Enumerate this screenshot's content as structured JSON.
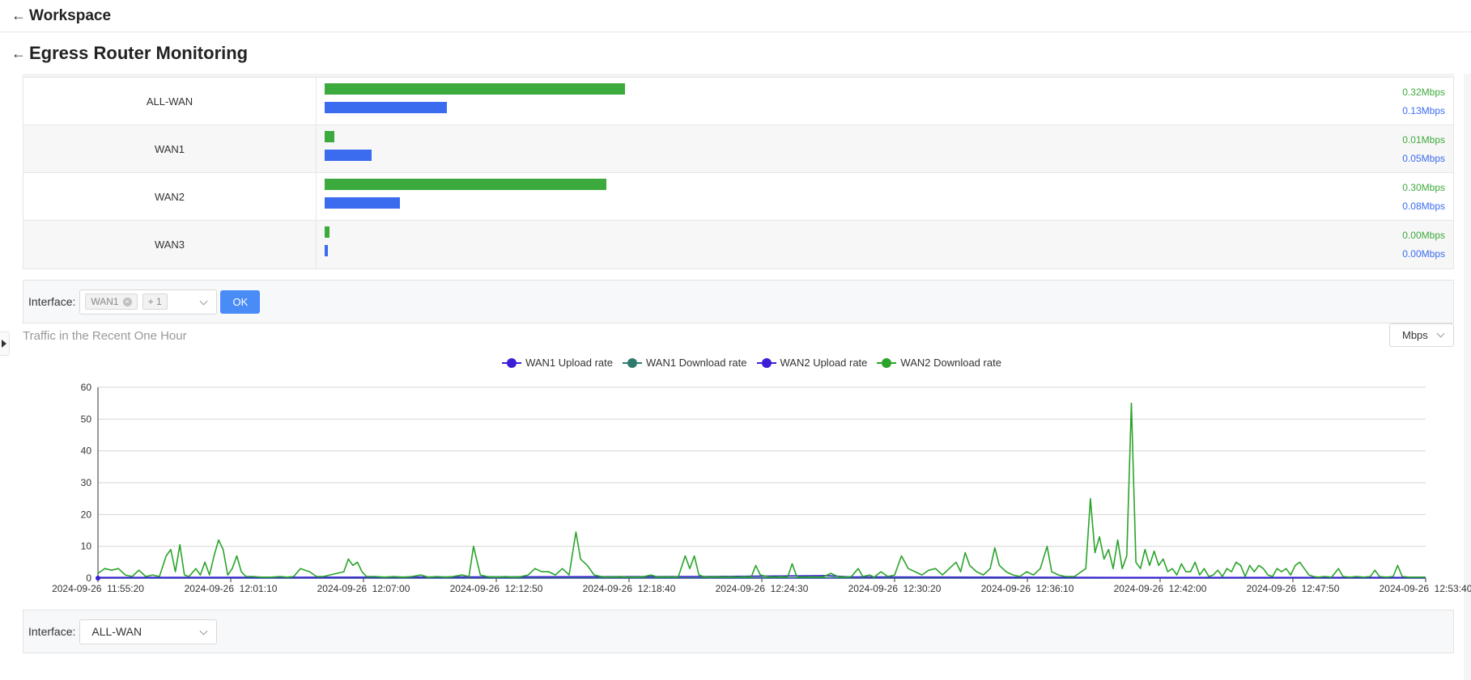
{
  "topbar": {
    "title": "Workspace"
  },
  "page": {
    "title": "Egress Router Monitoring"
  },
  "rates": {
    "rows": [
      {
        "name": "ALL-WAN",
        "up_label": "0.32Mbps",
        "down_label": "0.13Mbps",
        "up_fraction": 0.32,
        "down_fraction": 0.13
      },
      {
        "name": "WAN1",
        "up_label": "0.01Mbps",
        "down_label": "0.05Mbps",
        "up_fraction": 0.01,
        "down_fraction": 0.05
      },
      {
        "name": "WAN2",
        "up_label": "0.30Mbps",
        "down_label": "0.08Mbps",
        "up_fraction": 0.3,
        "down_fraction": 0.08
      },
      {
        "name": "WAN3",
        "up_label": "0.00Mbps",
        "down_label": "0.00Mbps",
        "up_fraction": 0.0,
        "down_fraction": 0.0
      }
    ],
    "up_color": "#3daa3d",
    "down_color": "#3b6cf0"
  },
  "filter1": {
    "label": "Interface:",
    "tag": "WAN1",
    "more": "+ 1",
    "ok_label": "OK"
  },
  "traffic": {
    "title": "Traffic in the Recent One Hour",
    "unit": "Mbps"
  },
  "filter2": {
    "label": "Interface:",
    "value": "ALL-WAN"
  },
  "chart_data": {
    "type": "line",
    "title": "Traffic in the Recent One Hour",
    "xlabel": "",
    "ylabel": "",
    "ylim": [
      0,
      60
    ],
    "yticks": [
      0,
      10,
      20,
      30,
      40,
      50,
      60
    ],
    "x_tick_labels": [
      "2024-09-26  11:55:20",
      "2024-09-26  12:01:10",
      "2024-09-26  12:07:00",
      "2024-09-26  12:12:50",
      "2024-09-26  12:18:40",
      "2024-09-26  12:24:30",
      "2024-09-26  12:30:20",
      "2024-09-26  12:36:10",
      "2024-09-26  12:42:00",
      "2024-09-26  12:47:50",
      "2024-09-26  12:53:40"
    ],
    "x_range_minutes": [
      0,
      58.33
    ],
    "grid": true,
    "legend_position": "top-center",
    "series": [
      {
        "name": "WAN1 Upload rate",
        "color": "#3a1fd6",
        "points": [
          [
            0,
            0
          ],
          [
            58.33,
            0
          ]
        ]
      },
      {
        "name": "WAN1 Download rate",
        "color": "#2f7a6e",
        "points": [
          [
            0,
            0.1
          ],
          [
            58.33,
            0.1
          ]
        ]
      },
      {
        "name": "WAN2 Upload rate",
        "color": "#3a1fd6",
        "points": [
          [
            0,
            0.2
          ],
          [
            12,
            0.3
          ],
          [
            27,
            0.5
          ],
          [
            32,
            0.8
          ],
          [
            33,
            0.4
          ],
          [
            45,
            0.2
          ],
          [
            58.33,
            0.2
          ]
        ]
      },
      {
        "name": "WAN2 Download rate",
        "color": "#2aa32a",
        "points": [
          [
            0,
            1.5
          ],
          [
            0.3,
            3
          ],
          [
            0.6,
            2.5
          ],
          [
            0.9,
            3
          ],
          [
            1.2,
            1
          ],
          [
            1.5,
            0.5
          ],
          [
            1.8,
            2.5
          ],
          [
            2.1,
            0.5
          ],
          [
            2.4,
            1
          ],
          [
            2.7,
            0.5
          ],
          [
            3.0,
            7
          ],
          [
            3.2,
            9
          ],
          [
            3.4,
            2
          ],
          [
            3.6,
            10.5
          ],
          [
            3.8,
            1
          ],
          [
            4.0,
            0.5
          ],
          [
            4.3,
            3
          ],
          [
            4.5,
            1
          ],
          [
            4.7,
            5
          ],
          [
            4.9,
            1
          ],
          [
            5.1,
            7
          ],
          [
            5.3,
            12
          ],
          [
            5.5,
            9
          ],
          [
            5.7,
            1
          ],
          [
            5.9,
            3
          ],
          [
            6.1,
            7
          ],
          [
            6.3,
            2
          ],
          [
            6.5,
            0.5
          ],
          [
            6.8,
            0.5
          ],
          [
            7.2,
            0.3
          ],
          [
            7.6,
            0.3
          ],
          [
            8.0,
            0.5
          ],
          [
            8.3,
            0.3
          ],
          [
            8.6,
            0.5
          ],
          [
            8.9,
            3
          ],
          [
            9.1,
            2.5
          ],
          [
            9.3,
            2
          ],
          [
            9.6,
            0.5
          ],
          [
            9.9,
            0.5
          ],
          [
            10.2,
            1
          ],
          [
            10.5,
            1.5
          ],
          [
            10.8,
            2
          ],
          [
            11.0,
            6
          ],
          [
            11.2,
            4
          ],
          [
            11.4,
            5
          ],
          [
            11.6,
            2
          ],
          [
            11.8,
            0.5
          ],
          [
            12.2,
            0.5
          ],
          [
            12.6,
            0.3
          ],
          [
            13.0,
            0.5
          ],
          [
            13.4,
            0.3
          ],
          [
            13.8,
            0.5
          ],
          [
            14.2,
            1
          ],
          [
            14.5,
            0.3
          ],
          [
            14.9,
            0.5
          ],
          [
            15.3,
            0.3
          ],
          [
            15.6,
            0.5
          ],
          [
            16.0,
            1
          ],
          [
            16.3,
            0.5
          ],
          [
            16.5,
            10
          ],
          [
            16.8,
            1
          ],
          [
            17.1,
            0.5
          ],
          [
            17.5,
            0.3
          ],
          [
            17.9,
            0.5
          ],
          [
            18.3,
            0.3
          ],
          [
            18.6,
            0.5
          ],
          [
            18.9,
            1
          ],
          [
            19.2,
            3
          ],
          [
            19.5,
            2
          ],
          [
            19.8,
            2
          ],
          [
            20.1,
            1
          ],
          [
            20.4,
            3
          ],
          [
            20.7,
            1
          ],
          [
            21.0,
            14.5
          ],
          [
            21.2,
            6
          ],
          [
            21.5,
            4
          ],
          [
            21.8,
            1
          ],
          [
            22.1,
            0.5
          ],
          [
            22.5,
            0.3
          ],
          [
            22.9,
            0.5
          ],
          [
            23.3,
            0.3
          ],
          [
            23.7,
            0.3
          ],
          [
            24.0,
            0.5
          ],
          [
            24.3,
            1
          ],
          [
            24.6,
            0.3
          ],
          [
            24.9,
            0.5
          ],
          [
            25.2,
            0.3
          ],
          [
            25.5,
            0.5
          ],
          [
            25.8,
            7
          ],
          [
            26.0,
            3
          ],
          [
            26.2,
            7
          ],
          [
            26.4,
            1
          ],
          [
            26.6,
            0.5
          ],
          [
            26.9,
            0.3
          ],
          [
            27.2,
            0.5
          ],
          [
            27.5,
            0.3
          ],
          [
            27.8,
            0.5
          ],
          [
            28.1,
            0.3
          ],
          [
            28.4,
            0.5
          ],
          [
            28.7,
            0.3
          ],
          [
            28.9,
            4
          ],
          [
            29.1,
            1
          ],
          [
            29.4,
            0.5
          ],
          [
            29.7,
            0.3
          ],
          [
            30.0,
            0.5
          ],
          [
            30.3,
            0.3
          ],
          [
            30.5,
            4.5
          ],
          [
            30.7,
            0.5
          ],
          [
            31.0,
            0.3
          ],
          [
            31.3,
            0.5
          ],
          [
            31.6,
            0.3
          ],
          [
            31.9,
            0.5
          ],
          [
            32.2,
            1.5
          ],
          [
            32.5,
            0.5
          ],
          [
            32.8,
            0.3
          ],
          [
            33.1,
            0.5
          ],
          [
            33.4,
            3
          ],
          [
            33.6,
            0.5
          ],
          [
            33.9,
            1
          ],
          [
            34.1,
            0.3
          ],
          [
            34.4,
            2
          ],
          [
            34.7,
            0.5
          ],
          [
            35.0,
            1
          ],
          [
            35.3,
            7
          ],
          [
            35.6,
            3
          ],
          [
            35.9,
            2
          ],
          [
            36.2,
            1
          ],
          [
            36.5,
            2.5
          ],
          [
            36.8,
            3
          ],
          [
            37.1,
            1
          ],
          [
            37.4,
            3
          ],
          [
            37.7,
            5
          ],
          [
            37.9,
            2
          ],
          [
            38.1,
            8
          ],
          [
            38.3,
            4
          ],
          [
            38.6,
            2
          ],
          [
            38.9,
            1
          ],
          [
            39.2,
            3
          ],
          [
            39.4,
            9.5
          ],
          [
            39.6,
            4
          ],
          [
            39.9,
            2
          ],
          [
            40.2,
            1
          ],
          [
            40.5,
            0.5
          ],
          [
            40.8,
            2
          ],
          [
            41.1,
            1
          ],
          [
            41.4,
            3
          ],
          [
            41.7,
            10
          ],
          [
            41.9,
            2
          ],
          [
            42.2,
            1
          ],
          [
            42.5,
            0.5
          ],
          [
            42.9,
            0.5
          ],
          [
            43.2,
            2
          ],
          [
            43.4,
            3
          ],
          [
            43.6,
            25
          ],
          [
            43.8,
            8
          ],
          [
            44.0,
            13
          ],
          [
            44.2,
            6
          ],
          [
            44.4,
            9
          ],
          [
            44.6,
            3
          ],
          [
            44.8,
            12
          ],
          [
            45.0,
            3
          ],
          [
            45.2,
            7
          ],
          [
            45.4,
            55
          ],
          [
            45.6,
            5
          ],
          [
            45.8,
            3
          ],
          [
            46.0,
            9
          ],
          [
            46.2,
            4
          ],
          [
            46.4,
            8.5
          ],
          [
            46.6,
            4
          ],
          [
            46.8,
            6
          ],
          [
            47.0,
            2
          ],
          [
            47.2,
            3
          ],
          [
            47.4,
            1
          ],
          [
            47.6,
            4.5
          ],
          [
            47.8,
            2
          ],
          [
            48.0,
            2
          ],
          [
            48.2,
            5
          ],
          [
            48.4,
            1
          ],
          [
            48.6,
            3
          ],
          [
            48.8,
            0.5
          ],
          [
            49.0,
            1
          ],
          [
            49.2,
            2.5
          ],
          [
            49.4,
            0.5
          ],
          [
            49.6,
            3
          ],
          [
            49.8,
            2
          ],
          [
            50.0,
            5
          ],
          [
            50.2,
            4
          ],
          [
            50.4,
            0.5
          ],
          [
            50.6,
            4
          ],
          [
            50.8,
            2
          ],
          [
            51.0,
            4
          ],
          [
            51.2,
            3
          ],
          [
            51.4,
            1
          ],
          [
            51.6,
            0.5
          ],
          [
            51.8,
            3
          ],
          [
            52.0,
            2
          ],
          [
            52.2,
            3
          ],
          [
            52.4,
            1
          ],
          [
            52.6,
            4
          ],
          [
            52.8,
            5
          ],
          [
            53.0,
            3
          ],
          [
            53.2,
            1
          ],
          [
            53.4,
            0.5
          ],
          [
            53.6,
            0.3
          ],
          [
            53.9,
            0.5
          ],
          [
            54.2,
            0.3
          ],
          [
            54.5,
            3
          ],
          [
            54.7,
            0.5
          ],
          [
            55.0,
            0.3
          ],
          [
            55.3,
            0.5
          ],
          [
            55.6,
            0.3
          ],
          [
            55.9,
            0.5
          ],
          [
            56.1,
            2.5
          ],
          [
            56.3,
            0.5
          ],
          [
            56.6,
            0.3
          ],
          [
            56.9,
            0.5
          ],
          [
            57.1,
            4
          ],
          [
            57.3,
            0.5
          ],
          [
            57.6,
            0.3
          ],
          [
            58.33,
            0.3
          ]
        ]
      }
    ]
  }
}
